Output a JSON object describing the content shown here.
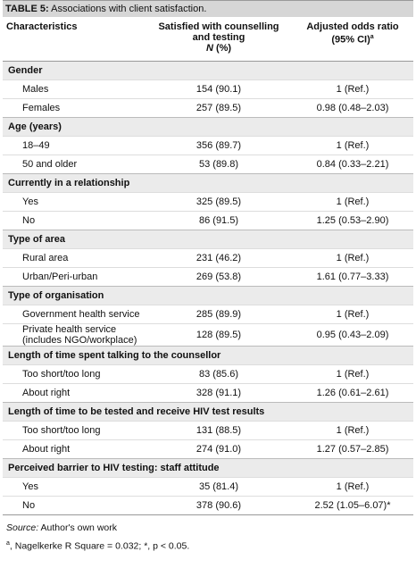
{
  "title": {
    "label": "TABLE 5:",
    "text": "Associations with client satisfaction."
  },
  "header": {
    "characteristics": "Characteristics",
    "satisfied": "Satisfied with counselling and testing",
    "n_symbol": "N",
    "n_unit": "(%)",
    "odds": "Adjusted odds ratio (95% CI)",
    "odds_sup": "a"
  },
  "sections": [
    {
      "heading": "Gender",
      "rows": [
        [
          "Males",
          "154 (90.1)",
          "1 (Ref.)"
        ],
        [
          "Females",
          "257 (89.5)",
          "0.98 (0.48–2.03)"
        ]
      ]
    },
    {
      "heading": "Age (years)",
      "rows": [
        [
          "18–49",
          "356 (89.7)",
          "1 (Ref.)"
        ],
        [
          "50 and older",
          "53 (89.8)",
          "0.84 (0.33–2.21)"
        ]
      ]
    },
    {
      "heading": "Currently in a relationship",
      "rows": [
        [
          "Yes",
          "325 (89.5)",
          "1 (Ref.)"
        ],
        [
          "No",
          "86 (91.5)",
          "1.25 (0.53–2.90)"
        ]
      ]
    },
    {
      "heading": "Type of area",
      "rows": [
        [
          "Rural area",
          "231 (46.2)",
          "1 (Ref.)"
        ],
        [
          "Urban/Peri-urban",
          "269 (53.8)",
          "1.61 (0.77–3.33)"
        ]
      ]
    },
    {
      "heading": "Type of organisation",
      "rows": [
        [
          "Government health service",
          "285 (89.9)",
          "1 (Ref.)"
        ],
        [
          "Private health service (includes NGO/workplace)",
          "128 (89.5)",
          "0.95 (0.43–2.09)"
        ]
      ]
    },
    {
      "heading": "Length of time spent talking to the counsellor",
      "rows": [
        [
          "Too short/too long",
          "83 (85.6)",
          "1 (Ref.)"
        ],
        [
          "About right",
          "328 (91.1)",
          "1.26 (0.61–2.61)"
        ]
      ]
    },
    {
      "heading": "Length of time to be tested and receive HIV test results",
      "rows": [
        [
          "Too short/too long",
          "131 (88.5)",
          "1 (Ref.)"
        ],
        [
          "About right",
          "274 (91.0)",
          "1.27 (0.57–2.85)"
        ]
      ]
    },
    {
      "heading": "Perceived barrier to HIV testing: staff attitude",
      "rows": [
        [
          "Yes",
          "35 (81.4)",
          "1 (Ref.)"
        ],
        [
          "No",
          "378 (90.6)",
          "2.52 (1.05–6.07)*"
        ]
      ]
    }
  ],
  "footnotes": {
    "source_label": "Source:",
    "source_text": "Author's own work",
    "note_sup": "a",
    "note_text": ", Nagelkerke R Square = 0.032; *, p < 0.05."
  }
}
